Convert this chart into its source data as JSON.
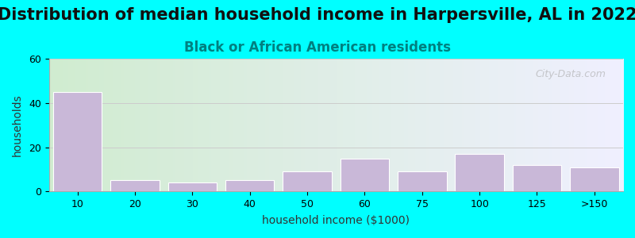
{
  "title": "Distribution of median household income in Harpersville, AL in 2022",
  "subtitle": "Black or African American residents",
  "xlabel": "household income ($1000)",
  "ylabel": "households",
  "background_color": "#00FFFF",
  "plot_bg_gradient_left": "#d4edda",
  "plot_bg_gradient_right": "#f8f8ff",
  "bar_color": "#c9b8d8",
  "bar_edge_color": "#ffffff",
  "categories": [
    "10",
    "20",
    "30",
    "40",
    "50",
    "60",
    "75",
    "100",
    "125",
    ">150"
  ],
  "values": [
    45,
    5,
    4,
    5,
    9,
    15,
    9,
    17,
    12,
    11
  ],
  "ylim": [
    0,
    60
  ],
  "yticks": [
    0,
    20,
    40,
    60
  ],
  "title_fontsize": 15,
  "subtitle_fontsize": 12,
  "axis_label_fontsize": 10,
  "watermark_text": "City-Data.com"
}
